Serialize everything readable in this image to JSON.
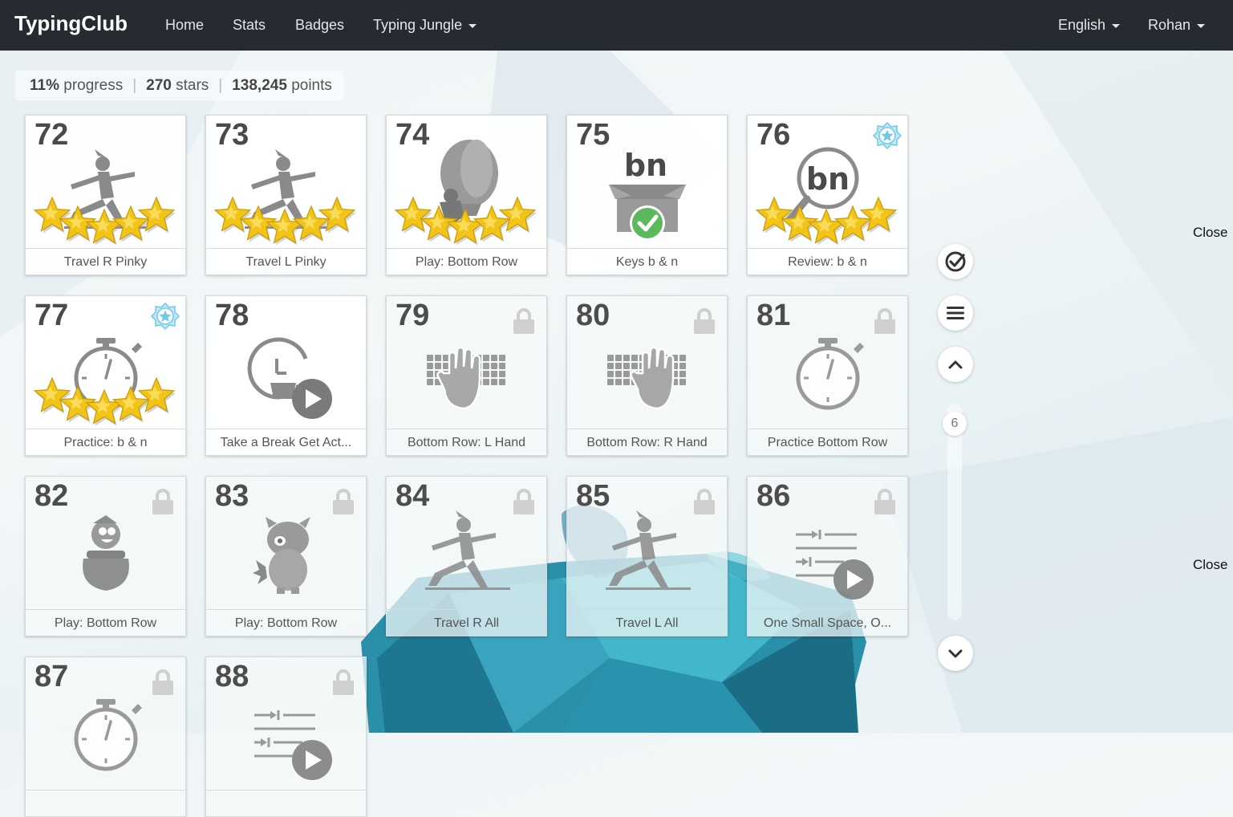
{
  "navbar": {
    "brand": "TypingClub",
    "links": [
      "Home",
      "Stats",
      "Badges",
      "Typing Jungle"
    ],
    "language": "English",
    "user": "Rohan"
  },
  "progress": {
    "percent": "11%",
    "percent_label": "progress",
    "stars": "270",
    "stars_label": "stars",
    "points": "138,245",
    "points_label": "points"
  },
  "lessons": [
    {
      "num": "72",
      "label": "Travel R Pinky",
      "locked": false,
      "stars": 5,
      "badge": false,
      "icon": "warrior-pose"
    },
    {
      "num": "73",
      "label": "Travel L Pinky",
      "locked": false,
      "stars": 5,
      "badge": false,
      "icon": "warrior-pose"
    },
    {
      "num": "74",
      "label": "Play: Bottom Row",
      "locked": false,
      "stars": 5,
      "badge": false,
      "icon": "balloon-game"
    },
    {
      "num": "75",
      "label": "Keys b & n",
      "locked": false,
      "stars": 0,
      "badge": false,
      "icon": "box-check",
      "icon_text": "bn"
    },
    {
      "num": "76",
      "label": "Review: b & n",
      "locked": false,
      "stars": 5,
      "badge": true,
      "icon": "magnifier",
      "icon_text": "bn"
    },
    {
      "num": "77",
      "label": "Practice: b & n",
      "locked": false,
      "stars": 5,
      "badge": true,
      "icon": "stopwatch"
    },
    {
      "num": "78",
      "label": "Take a Break Get Act...",
      "locked": false,
      "stars": 0,
      "badge": false,
      "icon": "break-video"
    },
    {
      "num": "79",
      "label": "Bottom Row: L Hand",
      "locked": true,
      "stars": 0,
      "badge": false,
      "icon": "keyboard-left-hand"
    },
    {
      "num": "80",
      "label": "Bottom Row: R Hand",
      "locked": true,
      "stars": 0,
      "badge": false,
      "icon": "keyboard-right-hand"
    },
    {
      "num": "81",
      "label": "Practice Bottom Row",
      "locked": true,
      "stars": 0,
      "badge": false,
      "icon": "stopwatch"
    },
    {
      "num": "82",
      "label": "Play: Bottom Row",
      "locked": true,
      "stars": 0,
      "badge": false,
      "icon": "pot-character"
    },
    {
      "num": "83",
      "label": "Play: Bottom Row",
      "locked": true,
      "stars": 0,
      "badge": false,
      "icon": "monster-character"
    },
    {
      "num": "84",
      "label": "Travel R All",
      "locked": true,
      "stars": 0,
      "badge": false,
      "icon": "warrior-pose"
    },
    {
      "num": "85",
      "label": "Travel L All",
      "locked": true,
      "stars": 0,
      "badge": false,
      "icon": "warrior-pose"
    },
    {
      "num": "86",
      "label": "One Small Space, O...",
      "locked": true,
      "stars": 0,
      "badge": false,
      "icon": "text-video"
    },
    {
      "num": "87",
      "label": "",
      "locked": true,
      "stars": 0,
      "badge": false,
      "icon": "stopwatch"
    },
    {
      "num": "88",
      "label": "",
      "locked": true,
      "stars": 0,
      "badge": false,
      "icon": "text-video"
    }
  ],
  "side_controls": {
    "scroll_page": "6",
    "close_label": "Close"
  },
  "colors": {
    "navbar_bg": "#252b31",
    "star_gold": "#f2c418",
    "check_green": "#5cb85c",
    "badge_blue": "#6ec8e8"
  }
}
